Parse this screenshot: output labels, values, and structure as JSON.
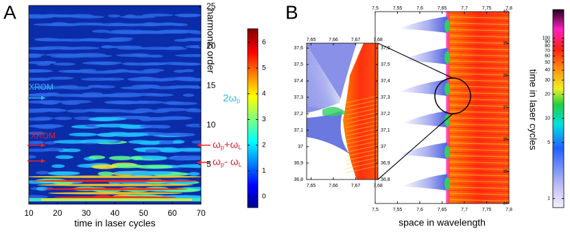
{
  "chart_data": [
    {
      "type": "heatmap",
      "panel_label": "A",
      "xlabel": "time in laser cycles",
      "ylabel": "harmonic order",
      "xlim": [
        10,
        70
      ],
      "xticks": [
        10,
        20,
        30,
        40,
        50,
        60,
        70
      ],
      "ylim": [
        0,
        25
      ],
      "yticks": [
        5,
        10,
        15,
        20,
        25
      ],
      "colorbar": {
        "lim": [
          -0.43,
          6.53
        ],
        "ticks": [
          0,
          1,
          2,
          3,
          4,
          5,
          6
        ],
        "log": false
      },
      "annotations": [
        {
          "text": [
            "XROM"
          ],
          "color": "#33bbee"
        },
        {
          "text": [
            "2ω",
            "p"
          ],
          "color": "#33bbee"
        },
        {
          "text": [
            "XROM"
          ],
          "color": "#e8202a"
        },
        {
          "text": [
            "ω",
            "p",
            "+ω",
            "L"
          ],
          "color": "#e8202a"
        },
        {
          "text": [
            "ω",
            "p",
            "- ω",
            "L"
          ],
          "color": "#e8202a"
        }
      ]
    },
    {
      "type": "heatmap",
      "panel_label": "B",
      "xlabel": "space in wavelength",
      "ylabel": "time in laser cycles",
      "xlim": [
        7.5,
        7.8
      ],
      "xticks": [
        {
          "value": 7.5,
          "label": "7,5"
        },
        {
          "value": 7.55,
          "label": "7,55"
        },
        {
          "value": 7.6,
          "label": "7,6"
        },
        {
          "value": 7.65,
          "label": "7,65"
        },
        {
          "value": 7.7,
          "label": "7,7"
        },
        {
          "value": 7.75,
          "label": "7,75"
        },
        {
          "value": 7.8,
          "label": "7,8"
        }
      ],
      "ylim": [
        34,
        40
      ],
      "yticks": [
        34,
        35,
        36,
        37,
        38,
        39,
        40
      ],
      "colorbar": {
        "lim": [
          0.77,
          228
        ],
        "ticks": [
          1,
          5,
          10,
          20,
          30,
          40,
          50,
          60,
          70,
          80,
          90,
          100
        ],
        "log": true
      }
    },
    {
      "type": "heatmap-inset",
      "xlim": [
        7.648,
        7.68
      ],
      "xticks": [
        {
          "value": 7.65,
          "label": "7,65"
        },
        {
          "value": 7.66,
          "label": "7,66"
        },
        {
          "value": 7.67,
          "label": "7,67"
        },
        {
          "value": 7.68,
          "label": "7,68"
        }
      ],
      "ylim": [
        36.8,
        37.63
      ],
      "yticks": [
        {
          "value": 36.8,
          "label": "36,8"
        },
        {
          "value": 36.9,
          "label": "36,9"
        },
        {
          "value": 37,
          "label": "37"
        },
        {
          "value": 37.1,
          "label": "37,1"
        },
        {
          "value": 37.2,
          "label": "37,2"
        },
        {
          "value": 37.3,
          "label": "37,3"
        },
        {
          "value": 37.4,
          "label": "37,4"
        },
        {
          "value": 37.5,
          "label": "37,5"
        },
        {
          "value": 37.6,
          "label": "37,6"
        }
      ]
    }
  ]
}
